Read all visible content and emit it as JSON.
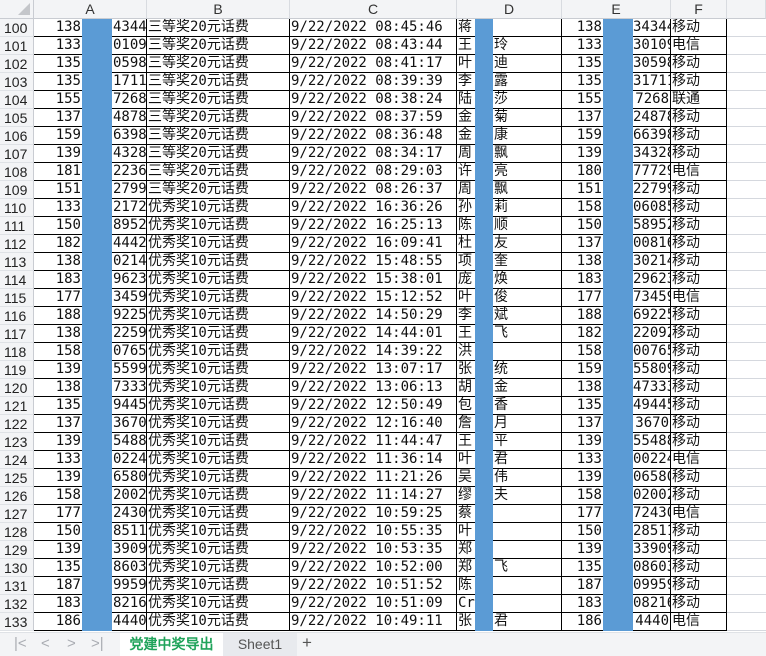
{
  "columns": [
    "A",
    "B",
    "C",
    "D",
    "E",
    "F"
  ],
  "redaction_color": "#5b9bd5",
  "rows": [
    {
      "n": "100",
      "a1": "138",
      "a2": "4344",
      "b": "三等奖20元话费",
      "c": "9/22/2022 08:45:46",
      "d1": "蒋",
      "d2": "",
      "e1": "138",
      "e2": "34344",
      "f": "移动"
    },
    {
      "n": "101",
      "a1": "133",
      "a2": "0109",
      "b": "三等奖20元话费",
      "c": "9/22/2022 08:43:44",
      "d1": "王",
      "d2": "玲",
      "e1": "133",
      "e2": "30109",
      "f": "电信"
    },
    {
      "n": "102",
      "a1": "135",
      "a2": "0598",
      "b": "三等奖20元话费",
      "c": "9/22/2022 08:41:17",
      "d1": "叶",
      "d2": "迪",
      "e1": "135",
      "e2": "30598",
      "f": "移动"
    },
    {
      "n": "103",
      "a1": "135",
      "a2": "1711",
      "b": "三等奖20元话费",
      "c": "9/22/2022 08:39:39",
      "d1": "李",
      "d2": "露",
      "e1": "135",
      "e2": "31711",
      "f": "移动"
    },
    {
      "n": "104",
      "a1": "155",
      "a2": "7268",
      "b": "三等奖20元话费",
      "c": "9/22/2022 08:38:24",
      "d1": "陆",
      "d2": "莎",
      "e1": "155",
      "e2": "7268",
      "f": "联通"
    },
    {
      "n": "105",
      "a1": "137",
      "a2": "4878",
      "b": "三等奖20元话费",
      "c": "9/22/2022 08:37:59",
      "d1": "金",
      "d2": "菊",
      "e1": "137",
      "e2": "24878",
      "f": "移动"
    },
    {
      "n": "106",
      "a1": "159",
      "a2": "6398",
      "b": "三等奖20元话费",
      "c": "9/22/2022 08:36:48",
      "d1": "金",
      "d2": "康",
      "e1": "159",
      "e2": "66398",
      "f": "移动"
    },
    {
      "n": "107",
      "a1": "139",
      "a2": "4328",
      "b": "三等奖20元话费",
      "c": "9/22/2022 08:34:17",
      "d1": "周",
      "d2": "飘",
      "e1": "139",
      "e2": "34328",
      "f": "移动"
    },
    {
      "n": "108",
      "a1": "181",
      "a2": "2236",
      "b": "三等奖20元话费",
      "c": "9/22/2022 08:29:03",
      "d1": "许",
      "d2": "亮",
      "e1": "180",
      "e2": "77729",
      "f": "电信"
    },
    {
      "n": "109",
      "a1": "151",
      "a2": "2799",
      "b": "三等奖20元话费",
      "c": "9/22/2022 08:26:37",
      "d1": "周",
      "d2": "飘",
      "e1": "151",
      "e2": "22799",
      "f": "移动"
    },
    {
      "n": "110",
      "a1": "133",
      "a2": "2172",
      "b": "优秀奖10元话费",
      "c": "9/22/2022 16:36:26",
      "d1": "孙",
      "d2": "莉",
      "e1": "158",
      "e2": "06085",
      "f": "移动"
    },
    {
      "n": "111",
      "a1": "150",
      "a2": "8952",
      "b": "优秀奖10元话费",
      "c": "9/22/2022 16:25:13",
      "d1": "陈",
      "d2": "顺",
      "e1": "150",
      "e2": "58952",
      "f": "移动"
    },
    {
      "n": "112",
      "a1": "182",
      "a2": "4442",
      "b": "优秀奖10元话费",
      "c": "9/22/2022 16:09:41",
      "d1": "杜",
      "d2": "友",
      "e1": "137",
      "e2": "00816",
      "f": "移动"
    },
    {
      "n": "113",
      "a1": "138",
      "a2": "0214",
      "b": "优秀奖10元话费",
      "c": "9/22/2022 15:48:55",
      "d1": "项",
      "d2": "奎",
      "e1": "138",
      "e2": "30214",
      "f": "移动"
    },
    {
      "n": "114",
      "a1": "183",
      "a2": "9623",
      "b": "优秀奖10元话费",
      "c": "9/22/2022 15:38:01",
      "d1": "庞",
      "d2": "焕",
      "e1": "183",
      "e2": "29623",
      "f": "移动"
    },
    {
      "n": "115",
      "a1": "177",
      "a2": "3459",
      "b": "优秀奖10元话费",
      "c": "9/22/2022 15:12:52",
      "d1": "叶",
      "d2": "俊",
      "e1": "177",
      "e2": "73459",
      "f": "电信"
    },
    {
      "n": "116",
      "a1": "188",
      "a2": "9225",
      "b": "优秀奖10元话费",
      "c": "9/22/2022 14:50:29",
      "d1": "李",
      "d2": "斌",
      "e1": "188",
      "e2": "69225",
      "f": "移动"
    },
    {
      "n": "117",
      "a1": "138",
      "a2": "2259",
      "b": "优秀奖10元话费",
      "c": "9/22/2022 14:44:01",
      "d1": "王",
      "d2": "飞",
      "e1": "182",
      "e2": "22092",
      "f": "移动"
    },
    {
      "n": "118",
      "a1": "158",
      "a2": "0765",
      "b": "优秀奖10元话费",
      "c": "9/22/2022 14:39:22",
      "d1": "洪",
      "d2": "",
      "e1": "158",
      "e2": "00765",
      "f": "移动"
    },
    {
      "n": "119",
      "a1": "139",
      "a2": "5599",
      "b": "优秀奖10元话费",
      "c": "9/22/2022 13:07:17",
      "d1": "张",
      "d2": "统",
      "e1": "159",
      "e2": "55809",
      "f": "移动"
    },
    {
      "n": "120",
      "a1": "138",
      "a2": "7333",
      "b": "优秀奖10元话费",
      "c": "9/22/2022 13:06:13",
      "d1": "胡",
      "d2": "金",
      "e1": "138",
      "e2": "47333",
      "f": "移动"
    },
    {
      "n": "121",
      "a1": "135",
      "a2": "9445",
      "b": "优秀奖10元话费",
      "c": "9/22/2022 12:50:49",
      "d1": "包",
      "d2": "香",
      "e1": "135",
      "e2": "49445",
      "f": "移动"
    },
    {
      "n": "122",
      "a1": "137",
      "a2": "3670",
      "b": "优秀奖10元话费",
      "c": "9/22/2022 12:16:40",
      "d1": "詹",
      "d2": "月",
      "e1": "137",
      "e2": "3670",
      "f": "移动"
    },
    {
      "n": "123",
      "a1": "139",
      "a2": "5488",
      "b": "优秀奖10元话费",
      "c": "9/22/2022 11:44:47",
      "d1": "王",
      "d2": "平",
      "e1": "139",
      "e2": "55488",
      "f": "移动"
    },
    {
      "n": "124",
      "a1": "133",
      "a2": "0224",
      "b": "优秀奖10元话费",
      "c": "9/22/2022 11:36:14",
      "d1": "叶",
      "d2": "君",
      "e1": "133",
      "e2": "00224",
      "f": "电信"
    },
    {
      "n": "125",
      "a1": "139",
      "a2": "6580",
      "b": "优秀奖10元话费",
      "c": "9/22/2022 11:21:26",
      "d1": "吴",
      "d2": "伟",
      "e1": "139",
      "e2": "06580",
      "f": "移动"
    },
    {
      "n": "126",
      "a1": "158",
      "a2": "2002",
      "b": "优秀奖10元话费",
      "c": "9/22/2022 11:14:27",
      "d1": "缪",
      "d2": "夫",
      "e1": "158",
      "e2": "02002",
      "f": "移动"
    },
    {
      "n": "127",
      "a1": "177",
      "a2": "2430",
      "b": "优秀奖10元话费",
      "c": "9/22/2022 10:59:25",
      "d1": "蔡",
      "d2": "",
      "e1": "177",
      "e2": "72430",
      "f": "电信"
    },
    {
      "n": "128",
      "a1": "150",
      "a2": "8511",
      "b": "优秀奖10元话费",
      "c": "9/22/2022 10:55:35",
      "d1": "叶",
      "d2": "",
      "e1": "150",
      "e2": "28511",
      "f": "移动"
    },
    {
      "n": "129",
      "a1": "139",
      "a2": "3909",
      "b": "优秀奖10元话费",
      "c": "9/22/2022 10:53:35",
      "d1": "郑",
      "d2": "",
      "e1": "139",
      "e2": "33909",
      "f": "移动"
    },
    {
      "n": "130",
      "a1": "135",
      "a2": "8603",
      "b": "优秀奖10元话费",
      "c": "9/22/2022 10:52:00",
      "d1": "郑",
      "d2": "飞",
      "e1": "135",
      "e2": "08603",
      "f": "移动"
    },
    {
      "n": "131",
      "a1": "187",
      "a2": "9959",
      "b": "优秀奖10元话费",
      "c": "9/22/2022 10:51:52",
      "d1": "陈",
      "d2": "",
      "e1": "187",
      "e2": "09959",
      "f": "移动"
    },
    {
      "n": "132",
      "a1": "183",
      "a2": "8216",
      "b": "优秀奖10元话费",
      "c": "9/22/2022 10:51:09",
      "d1": "Cr",
      "d2": "",
      "e1": "183",
      "e2": "08216",
      "f": "移动"
    },
    {
      "n": "133",
      "a1": "186",
      "a2": "4440",
      "b": "优秀奖10元话费",
      "c": "9/22/2022 10:49:11",
      "d1": "张",
      "d2": "君",
      "e1": "186",
      "e2": "4440",
      "f": "电信"
    }
  ],
  "tabs": {
    "nav_first": "|<",
    "nav_prev": "<",
    "nav_next": ">",
    "nav_last": ">|",
    "sheets": [
      {
        "label": "党建中奖导出",
        "active": true
      },
      {
        "label": "Sheet1",
        "active": false
      }
    ],
    "add_sheet": "+"
  }
}
